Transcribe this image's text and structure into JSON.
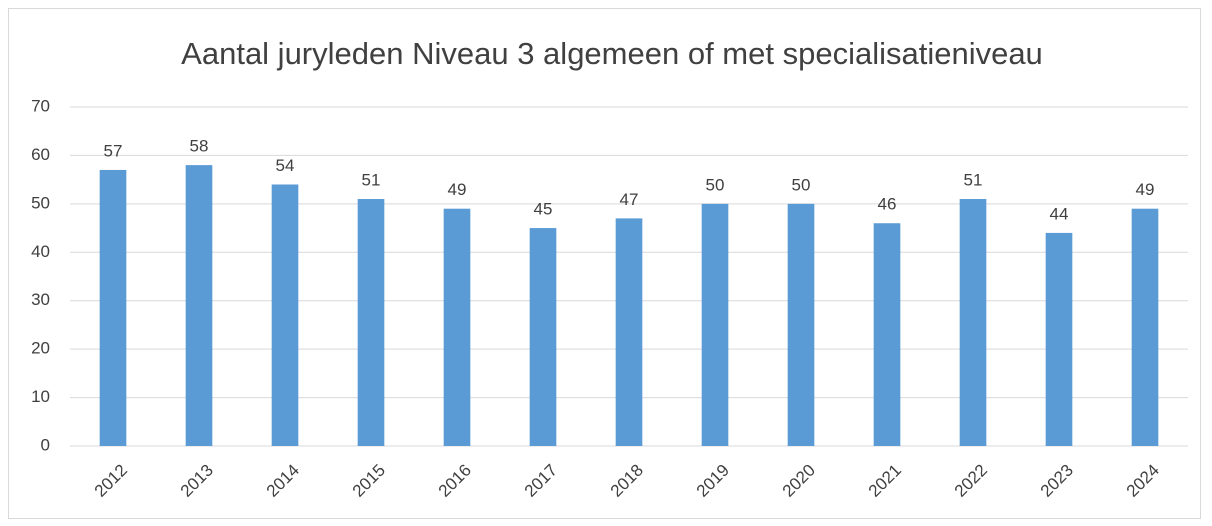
{
  "chart_data": {
    "type": "bar",
    "title": "Aantal juryleden Niveau 3 algemeen of met specialisatieniveau",
    "categories": [
      "2012",
      "2013",
      "2014",
      "2015",
      "2016",
      "2017",
      "2018",
      "2019",
      "2020",
      "2021",
      "2022",
      "2023",
      "2024"
    ],
    "values": [
      57,
      58,
      54,
      51,
      49,
      45,
      47,
      50,
      50,
      46,
      51,
      44,
      49
    ],
    "color": "#5b9bd5",
    "ylim": [
      0,
      70
    ],
    "yticks": [
      0,
      10,
      20,
      30,
      40,
      50,
      60,
      70
    ],
    "grid": true,
    "data_labels": true
  }
}
